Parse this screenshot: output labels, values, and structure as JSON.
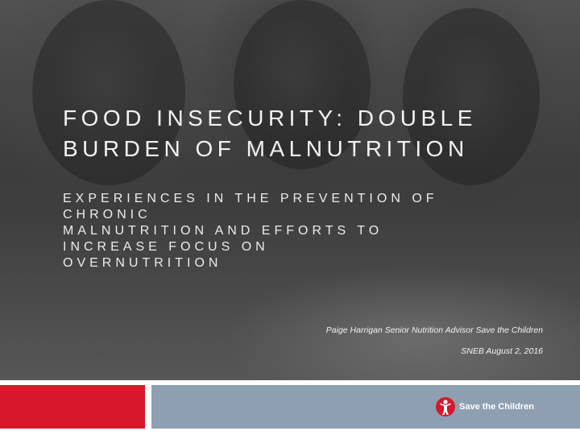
{
  "slide": {
    "title_lines": [
      "FOOD INSECURITY: DOUBLE",
      "BURDEN OF MALNUTRITION"
    ],
    "subtitle_lines": [
      "EXPERIENCES IN THE PREVENTION OF",
      "CHRONIC",
      "MALNUTRITION AND EFFORTS TO",
      "INCREASE FOCUS ON",
      "OVERNUTRITION"
    ],
    "author": "Paige Harrigan Senior Nutrition Advisor Save the Children",
    "date": "SNEB August 2, 2016"
  },
  "footer": {
    "logo_text": "Save the Children",
    "logo_icon": "save-the-children-logo-icon"
  },
  "colors": {
    "red_bar": "#d7182a",
    "blue_bar": "#8f9fb2",
    "logo_red": "#d7182a"
  }
}
